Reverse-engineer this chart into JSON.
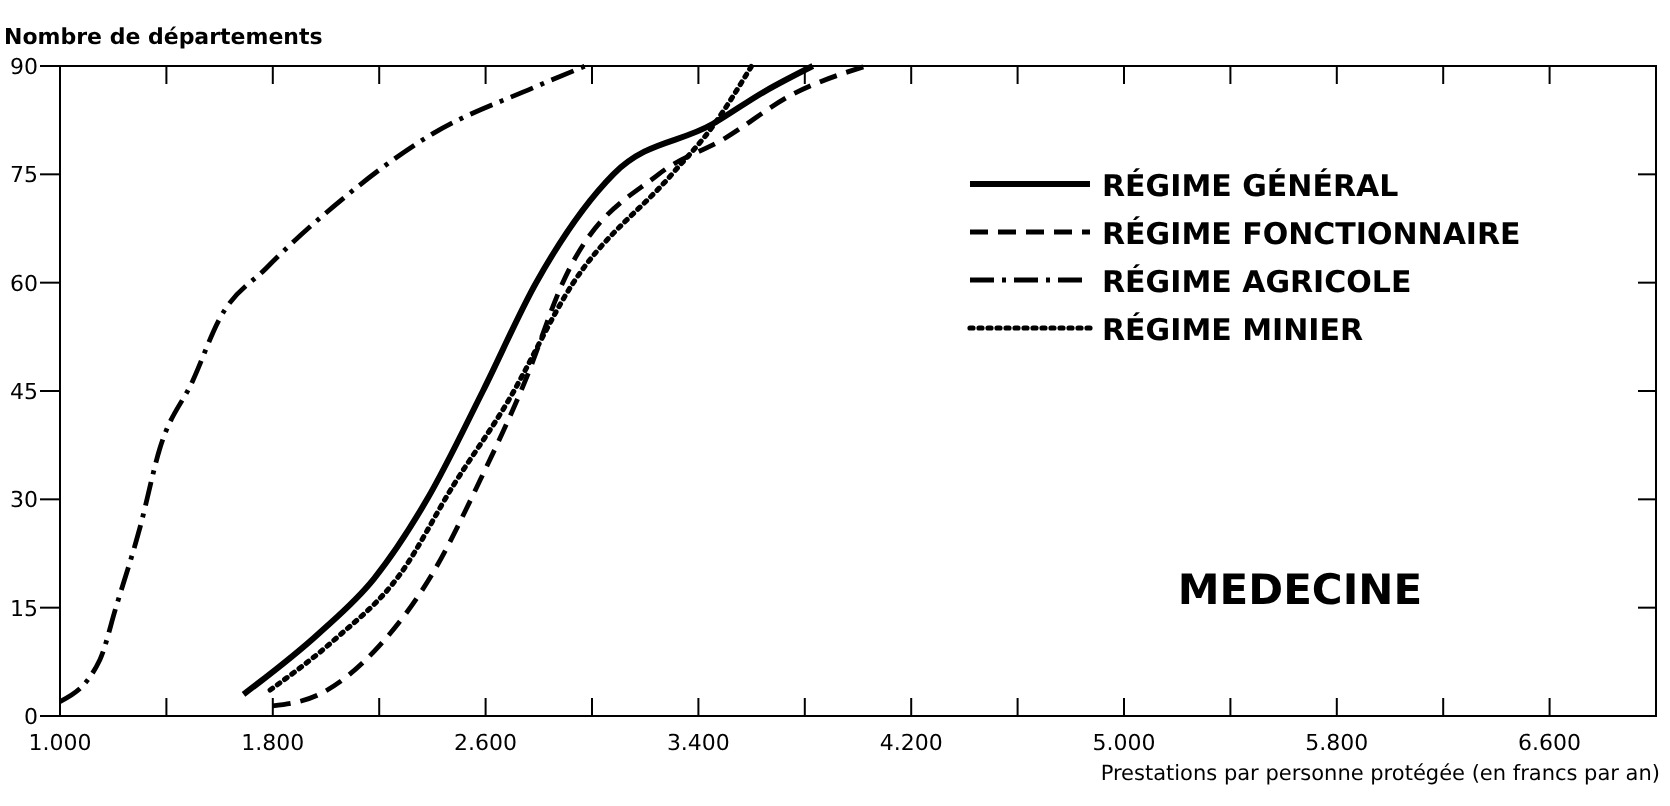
{
  "chart_data": {
    "type": "line",
    "ylabel": "Nombre de départements",
    "xlabel": "Prestations par personne protégée (en francs par an)",
    "annotations": [
      "MEDECINE"
    ],
    "xlim": [
      1000,
      7000
    ],
    "xticks": [
      {
        "value": 1000,
        "label": "1.000"
      },
      {
        "value": 1400,
        "label": null
      },
      {
        "value": 1800,
        "label": "1.800"
      },
      {
        "value": 2200,
        "label": null
      },
      {
        "value": 2600,
        "label": "2.600"
      },
      {
        "value": 3000,
        "label": null
      },
      {
        "value": 3400,
        "label": "3.400"
      },
      {
        "value": 3800,
        "label": null
      },
      {
        "value": 4200,
        "label": "4.200"
      },
      {
        "value": 4600,
        "label": null
      },
      {
        "value": 5000,
        "label": "5.000"
      },
      {
        "value": 5400,
        "label": null
      },
      {
        "value": 5800,
        "label": "5.800"
      },
      {
        "value": 6200,
        "label": null
      },
      {
        "value": 6600,
        "label": "6.600"
      }
    ],
    "ylim": [
      0,
      90
    ],
    "yticks": [
      0,
      15,
      30,
      45,
      60,
      75,
      90
    ],
    "legend": "top right",
    "grid": false,
    "series": [
      {
        "name": "RÉGIME GÉNÉRAL",
        "color": "#000000",
        "line_style": "solid",
        "x": [
          1690,
          1975,
          2180,
          2380,
          2590,
          2790,
          3080,
          3455,
          3650,
          3830
        ],
        "values": [
          3,
          11.5,
          19,
          30,
          45,
          60,
          75,
          82,
          86.5,
          90
        ]
      },
      {
        "name": "RÉGIME FONCTIONNAIRE",
        "color": "#000000",
        "line_style": "dashed",
        "x": [
          1800,
          1975,
          2200,
          2400,
          2580,
          2750,
          2890,
          3250,
          3500,
          3750,
          4030
        ],
        "values": [
          1.4,
          3,
          9.7,
          19.7,
          32.7,
          46.5,
          60,
          75,
          80,
          86,
          90
        ]
      },
      {
        "name": "RÉGIME AGRICOLE",
        "color": "#000000",
        "line_style": "dashdot",
        "x": [
          1000,
          1150,
          1210,
          1300,
          1375,
          1500,
          1600,
          1775,
          2030,
          2400,
          2780,
          2975
        ],
        "values": [
          2,
          7.8,
          15,
          26,
          37,
          46.5,
          55,
          62,
          70.6,
          80.6,
          87,
          90
        ]
      },
      {
        "name": "RÉGIME MINIER",
        "color": "#000000",
        "line_style": "dotted",
        "x": [
          1790,
          2030,
          2280,
          2480,
          2675,
          2930,
          3300,
          3455,
          3600
        ],
        "values": [
          3.6,
          10.5,
          19.7,
          32,
          43,
          60,
          75,
          81.7,
          90
        ]
      }
    ]
  }
}
